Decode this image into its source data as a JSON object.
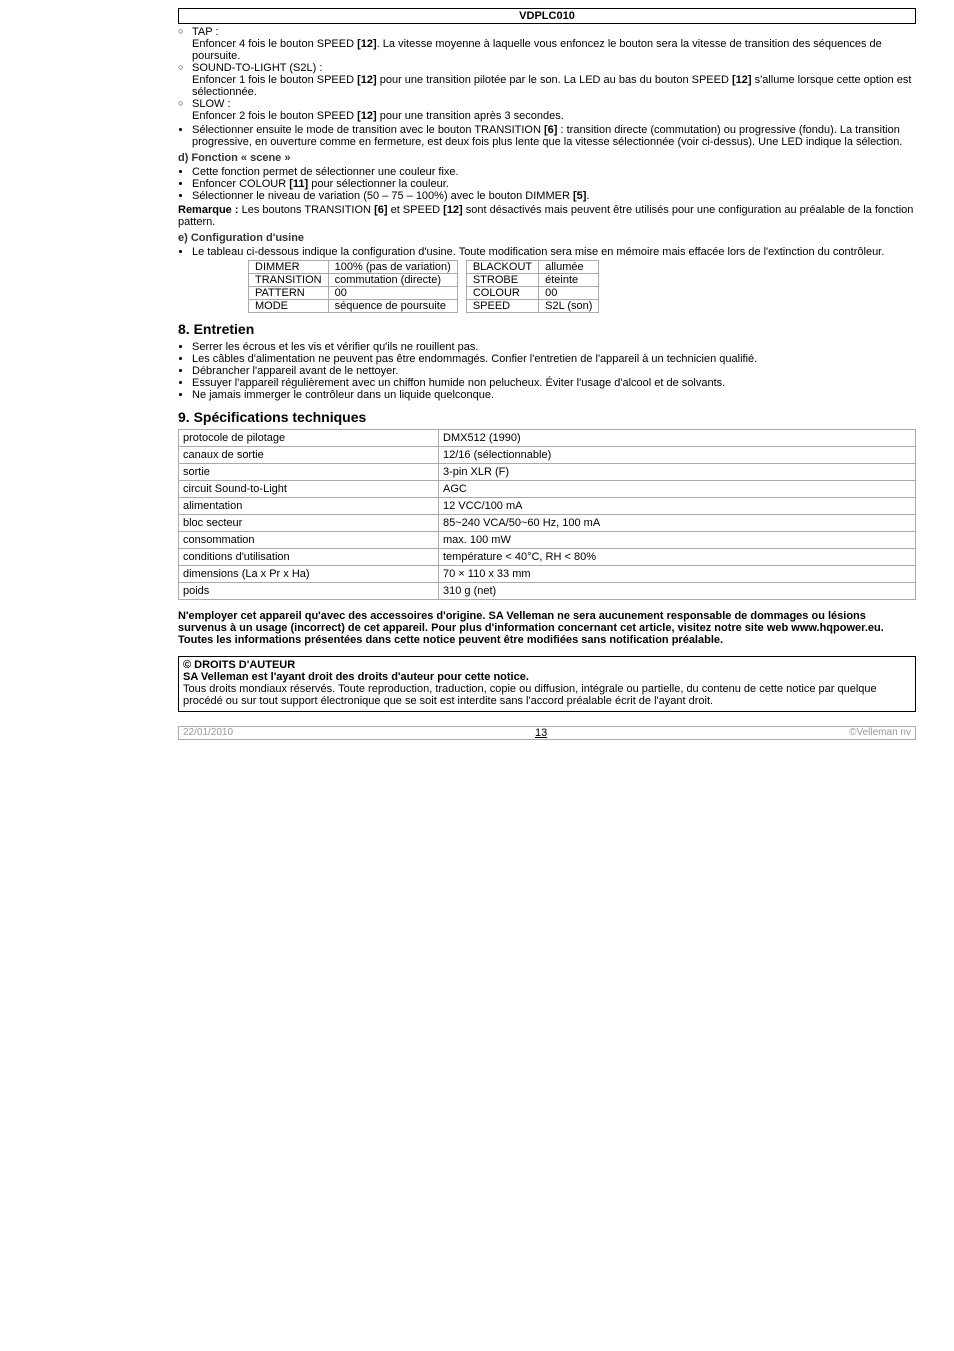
{
  "header": {
    "code": "VDPLC010"
  },
  "intro_sublist": [
    {
      "label": "TAP :",
      "text": "Enfoncer 4 fois le bouton SPEED [12]. La vitesse moyenne à laquelle vous enfoncez le bouton sera la vitesse de transition des séquences de poursuite."
    },
    {
      "label": "SOUND-TO-LIGHT (S2L) :",
      "text": "Enfoncer 1 fois le bouton SPEED [12] pour une transition pilotée par le son. La LED au bas du bouton SPEED [12] s'allume lorsque cette option est sélectionnée."
    },
    {
      "label": "SLOW :",
      "text": "Enfoncer 2 fois le bouton SPEED [12] pour une transition après 3 secondes."
    }
  ],
  "intro_bullet": "Sélectionner ensuite le mode de transition avec le bouton TRANSITION [6] : transition directe (commutation) ou progressive (fondu). La transition progressive, en ouverture comme en fermeture, est deux fois plus lente que la vitesse sélectionnée (voir ci-dessus). Une LED indique la sélection.",
  "section_d": {
    "title": "d) Fonction « scene »",
    "items": [
      "Cette fonction permet de sélectionner une couleur fixe.",
      "Enfoncer COLOUR [11] pour sélectionner la couleur.",
      "Sélectionner le niveau de variation (50 – 75 – 100%) avec le bouton DIMMER [5]."
    ],
    "remarque_label": "Remarque :",
    "remarque_text": " Les boutons TRANSITION [6] et SPEED [12] sont désactivés mais peuvent être utilisés pour une configuration au préalable de la fonction pattern."
  },
  "section_e": {
    "title": "e) Configuration d'usine",
    "intro": "Le tableau ci-dessous indique la configuration d'usine. Toute modification sera mise en mémoire mais effacée lors de l'extinction du contrôleur.",
    "left": [
      [
        "DIMMER",
        "100% (pas de variation)"
      ],
      [
        "TRANSITION",
        "commutation (directe)"
      ],
      [
        "PATTERN",
        "00"
      ],
      [
        "MODE",
        "séquence de poursuite"
      ]
    ],
    "right": [
      [
        "BLACKOUT",
        "allumée"
      ],
      [
        "STROBE",
        "éteinte"
      ],
      [
        "COLOUR",
        "00"
      ],
      [
        "SPEED",
        "S2L (son)"
      ]
    ]
  },
  "section_8": {
    "title": "8.  Entretien",
    "items": [
      "Serrer les écrous et les vis et vérifier qu'ils ne rouillent pas.",
      "Les câbles d'alimentation ne peuvent pas être endommagés. Confier l'entretien de l'appareil à un technicien qualifié.",
      "Débrancher l'appareil avant de le nettoyer.",
      "Essuyer l'appareil régulièrement avec un chiffon humide non pelucheux. Éviter l'usage d'alcool et de solvants.",
      "Ne jamais immerger le contrôleur dans un liquide quelconque."
    ]
  },
  "section_9": {
    "title": "9.  Spécifications techniques",
    "rows": [
      [
        "protocole de pilotage",
        "DMX512 (1990)"
      ],
      [
        "canaux de sortie",
        "12/16 (sélectionnable)"
      ],
      [
        "sortie",
        "3-pin XLR (F)"
      ],
      [
        "circuit Sound-to-Light",
        "AGC"
      ],
      [
        "alimentation",
        "12 VCC/100 mA"
      ],
      [
        "bloc secteur",
        "85~240 VCA/50~60 Hz, 100 mA"
      ],
      [
        "consommation",
        "max. 100 mW"
      ],
      [
        "conditions d'utilisation",
        "température < 40°C, RH < 80%"
      ],
      [
        "dimensions (La x Pr x Ha)",
        "70 × 110 x 33 mm"
      ],
      [
        "poids",
        "310 g (net)"
      ]
    ]
  },
  "disclaimer": "N'employer cet appareil qu'avec des accessoires d'origine. SA Velleman ne sera aucunement responsable de dommages ou lésions survenus à un usage (incorrect) de cet appareil. Pour plus d'information concernant cet article, visitez notre site web www.hqpower.eu. Toutes les informations présentées dans cette notice peuvent être modifiées sans notification préalable.",
  "copyright": {
    "title": "© DROITS D'AUTEUR",
    "bold_line": "SA Velleman est l'ayant droit des droits d'auteur pour cette notice.",
    "body": "Tous droits mondiaux réservés. Toute reproduction, traduction, copie ou diffusion, intégrale ou partielle, du contenu de cette notice par quelque procédé ou sur tout support électronique que se soit est interdite sans l'accord préalable écrit de l'ayant droit."
  },
  "footer": {
    "date": "22/01/2010",
    "page": "13",
    "brand": "©Velleman nv"
  }
}
